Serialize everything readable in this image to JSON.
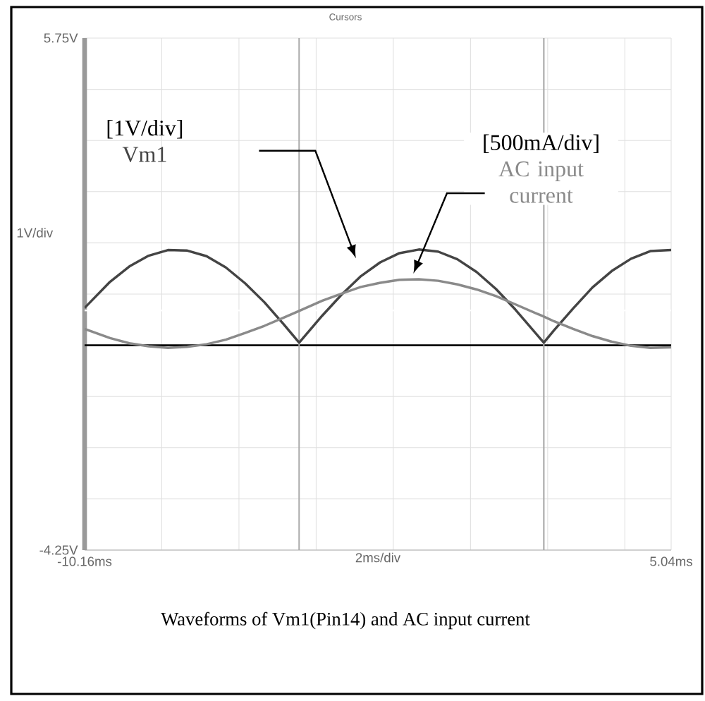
{
  "chart_data": {
    "type": "line",
    "xlabel": "2ms/div",
    "ylabel": "1V/div",
    "x": [
      -10.16,
      -9.5,
      -9,
      -8.5,
      -8,
      -7.5,
      -7,
      -6.5,
      -6,
      -5.5,
      -5,
      -4.6,
      -4,
      -3.5,
      -3,
      -2.5,
      -2,
      -1.5,
      -1,
      -0.5,
      0,
      0.5,
      1,
      1.74,
      2,
      2.5,
      3,
      3.5,
      4,
      4.5,
      5.04
    ],
    "series": [
      {
        "name": "Vm1",
        "color": "#444444",
        "values": [
          0.48,
          0.99,
          1.29,
          1.5,
          1.61,
          1.6,
          1.49,
          1.27,
          0.96,
          0.59,
          0.16,
          -0.2,
          0.33,
          0.74,
          1.1,
          1.37,
          1.55,
          1.62,
          1.58,
          1.43,
          1.18,
          0.85,
          0.45,
          -0.2,
          0.04,
          0.47,
          0.88,
          1.2,
          1.44,
          1.59,
          1.61
        ]
      },
      {
        "name": "AC input current",
        "color": "#8a8a8a",
        "values": [
          0.07,
          -0.11,
          -0.21,
          -0.27,
          -0.3,
          -0.28,
          -0.23,
          -0.14,
          -0.01,
          0.13,
          0.29,
          0.42,
          0.62,
          0.76,
          0.89,
          0.97,
          1.03,
          1.04,
          1.01,
          0.94,
          0.84,
          0.71,
          0.55,
          0.31,
          0.22,
          0.07,
          -0.07,
          -0.18,
          -0.26,
          -0.3,
          -0.29
        ]
      }
    ],
    "xlim": [
      -10.16,
      5.04
    ],
    "ylim": [
      -4.25,
      5.75
    ],
    "xticks": [
      {
        "value": -10.16,
        "label": "-10.16ms"
      },
      {
        "value": -8.16,
        "label": null
      },
      {
        "value": -6.16,
        "label": null
      },
      {
        "value": -4.16,
        "label": null
      },
      {
        "value": -2.16,
        "label": null
      },
      {
        "value": -0.16,
        "label": null
      },
      {
        "value": 1.84,
        "label": null
      },
      {
        "value": 3.84,
        "label": null
      },
      {
        "value": 5.04,
        "label": "5.04ms"
      }
    ],
    "yticks": [
      {
        "value": -4.25,
        "label": "-4.25V"
      },
      {
        "value": -3.25,
        "label": null
      },
      {
        "value": -2.25,
        "label": null
      },
      {
        "value": -1.25,
        "label": null
      },
      {
        "value": -0.25,
        "label": null
      },
      {
        "value": 0.75,
        "label": null
      },
      {
        "value": 1.75,
        "label": null
      },
      {
        "value": 2.75,
        "label": null
      },
      {
        "value": 3.75,
        "label": null
      },
      {
        "value": 4.75,
        "label": null
      },
      {
        "value": 5.75,
        "label": "5.75V"
      }
    ],
    "grid": true,
    "marker": "none",
    "line_style": "solid",
    "ref_lines": [
      {
        "axis": "y",
        "value": -0.25,
        "color": "#000000"
      },
      {
        "axis": "y",
        "value": 0.43,
        "color": "#ffffff"
      },
      {
        "axis": "x",
        "value": -4.6,
        "color": "#aaaaaa"
      },
      {
        "axis": "x",
        "value": 1.74,
        "color": "#aaaaaa"
      }
    ],
    "annotations": [
      "[1V/div]",
      "[500mA/div]",
      "Cursors",
      "Waveforms of Vm1(Pin14) and AC input current"
    ]
  }
}
